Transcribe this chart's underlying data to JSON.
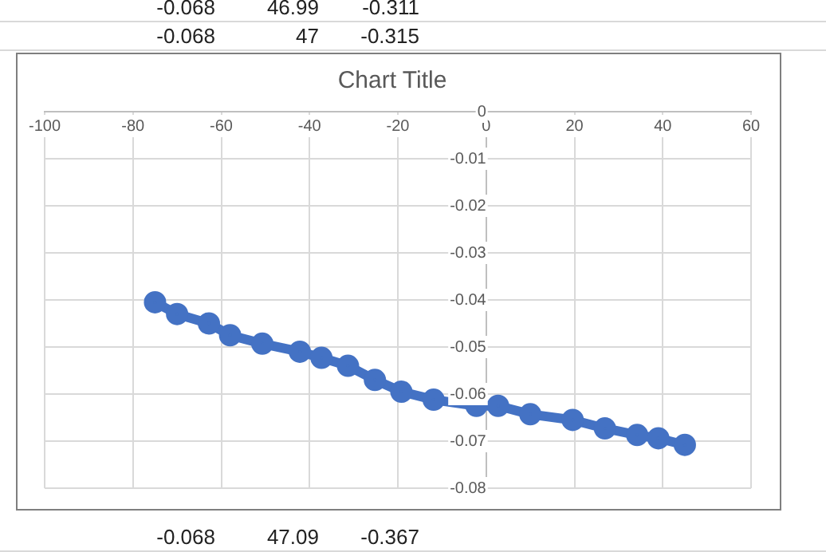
{
  "chart_data": {
    "type": "line",
    "title": "Chart Title",
    "marker": "circle",
    "grid": true,
    "legend": false,
    "xlim": [
      -100,
      60
    ],
    "xticks": [
      -100,
      -80,
      -60,
      -40,
      -20,
      0,
      20,
      40,
      60
    ],
    "ylim": [
      -0.08,
      0
    ],
    "yticks": [
      -0.08,
      -0.07,
      -0.06,
      -0.05,
      -0.04,
      -0.03,
      -0.02,
      -0.01,
      0
    ],
    "series": [
      {
        "color": "#4472c4",
        "x": [
          -75,
          -70,
          -62.8,
          -58,
          -50.7,
          -42.2,
          -37.3,
          -31.3,
          -25.2,
          -19.2,
          -11.9,
          -2.2,
          2.7,
          10,
          19.6,
          26.9,
          34.2,
          39,
          45
        ],
        "values": [
          -0.0405,
          -0.043,
          -0.045,
          -0.0475,
          -0.0493,
          -0.051,
          -0.0523,
          -0.054,
          -0.057,
          -0.0595,
          -0.0612,
          -0.0625,
          -0.0625,
          -0.0643,
          -0.0655,
          -0.0673,
          -0.0687,
          -0.0694,
          -0.0708
        ]
      }
    ],
    "annotations": [
      "-0.068",
      "46.99",
      "-0.311",
      "-0.068",
      "47",
      "-0.315",
      "-0.068",
      "47.09",
      "-0.367"
    ]
  }
}
